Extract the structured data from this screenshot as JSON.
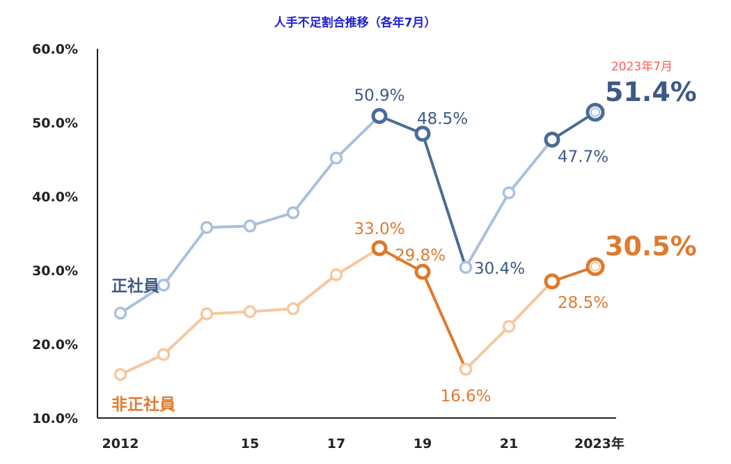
{
  "chart_data": {
    "type": "line",
    "title": "人手不足割合推移（各年7月）",
    "xlabel": "",
    "ylabel": "",
    "ylim": [
      10,
      60
    ],
    "yticks": [
      "60.0%",
      "50.0%",
      "40.0%",
      "30.0%",
      "20.0%",
      "10.0%"
    ],
    "ytick_values": [
      60,
      50,
      40,
      30,
      20,
      10
    ],
    "x": [
      2012,
      2013,
      2014,
      2015,
      2016,
      2017,
      2018,
      2019,
      2020,
      2021,
      2022,
      2023
    ],
    "xticks": [
      {
        "x": 2012,
        "label": "2012"
      },
      {
        "x": 2015,
        "label": "15"
      },
      {
        "x": 2017,
        "label": "17"
      },
      {
        "x": 2019,
        "label": "19"
      },
      {
        "x": 2021,
        "label": "21"
      },
      {
        "x": 2023,
        "label": "2023年"
      }
    ],
    "grid": false,
    "note": "2023年7月",
    "series": [
      {
        "name": "正社員",
        "color_light": "#a9c0de",
        "color_dark": "#4a6c96",
        "text_color": "#3d5a85",
        "values": [
          24.2,
          28.0,
          35.8,
          36.0,
          37.8,
          45.2,
          50.9,
          48.5,
          30.4,
          40.5,
          47.7,
          51.4
        ],
        "labels": [
          {
            "x": 2018,
            "text": "50.9%"
          },
          {
            "x": 2019,
            "text": "48.5%"
          },
          {
            "x": 2020,
            "text": "30.4%"
          },
          {
            "x": 2022,
            "text": "47.7%"
          },
          {
            "x": 2023,
            "text": "51.4%",
            "emphasis": true
          }
        ]
      },
      {
        "name": "非正社員",
        "color_light": "#f7c79c",
        "color_dark": "#e0782a",
        "text_color": "#e07a30",
        "values": [
          15.9,
          18.6,
          24.1,
          24.4,
          24.8,
          29.4,
          33.0,
          29.8,
          16.6,
          22.4,
          28.5,
          30.5
        ],
        "labels": [
          {
            "x": 2018,
            "text": "33.0%"
          },
          {
            "x": 2019,
            "text": "29.8%"
          },
          {
            "x": 2020,
            "text": "16.6%"
          },
          {
            "x": 2022,
            "text": "28.5%"
          },
          {
            "x": 2023,
            "text": "30.5%",
            "emphasis": true
          }
        ]
      }
    ]
  },
  "colors": {
    "title": "#1f1fd6",
    "note": "#ff5a5a",
    "axis": "#222222"
  }
}
